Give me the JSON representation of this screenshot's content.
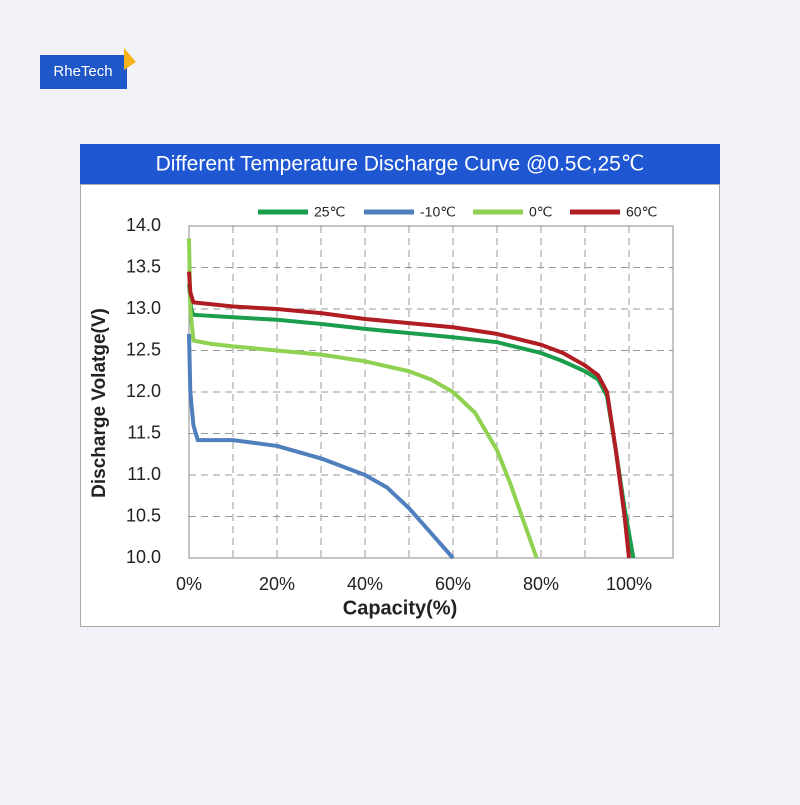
{
  "logo": "RheTech",
  "chart_data": {
    "type": "line",
    "title": "Different Temperature Discharge Curve @0.5C,25℃",
    "x_label": "Capacity(%)",
    "y_label": "Discharge Volatge(V)",
    "xlim": [
      0,
      110
    ],
    "ylim": [
      10,
      14
    ],
    "xticks": [
      {
        "value": 0,
        "label": "0%"
      },
      {
        "value": 20,
        "label": "20%"
      },
      {
        "value": 40,
        "label": "40%"
      },
      {
        "value": 60,
        "label": "60%"
      },
      {
        "value": 80,
        "label": "80%"
      },
      {
        "value": 100,
        "label": "100%"
      }
    ],
    "minor_xticks": [
      10,
      30,
      50,
      70,
      90,
      110
    ],
    "yticks": [
      {
        "value": 10,
        "label": "10.0"
      },
      10.5,
      {
        "value": 11,
        "label": "11.0"
      },
      11.5,
      {
        "value": 12,
        "label": "12.0"
      },
      12.5,
      {
        "value": 13,
        "label": "13.0"
      },
      13.5,
      {
        "value": 14,
        "label": "14.0"
      }
    ],
    "grid": true,
    "legend": "top",
    "series": [
      {
        "name": "25℃",
        "color": "#1a9e4c",
        "x": [
          0,
          0.5,
          1,
          10,
          20,
          30,
          40,
          50,
          60,
          70,
          80,
          85,
          90,
          93,
          95,
          97,
          99,
          101
        ],
        "values": [
          13.3,
          13.0,
          12.93,
          12.9,
          12.87,
          12.82,
          12.76,
          12.71,
          12.66,
          12.6,
          12.47,
          12.37,
          12.25,
          12.15,
          11.95,
          11.3,
          10.6,
          10.0
        ]
      },
      {
        "name": "-10℃",
        "color": "#4f7fbd",
        "x": [
          0,
          0.3,
          1,
          2,
          5,
          10,
          20,
          30,
          40,
          45,
          50,
          55,
          60
        ],
        "values": [
          12.7,
          12.0,
          11.6,
          11.42,
          11.42,
          11.42,
          11.35,
          11.2,
          11.0,
          10.85,
          10.6,
          10.3,
          10.0
        ]
      },
      {
        "name": "0℃",
        "color": "#8fd150",
        "x": [
          0,
          0.3,
          1,
          5,
          10,
          20,
          30,
          40,
          50,
          55,
          60,
          65,
          70,
          73,
          76,
          79
        ],
        "values": [
          13.85,
          13.0,
          12.62,
          12.58,
          12.55,
          12.5,
          12.45,
          12.37,
          12.25,
          12.15,
          12.0,
          11.75,
          11.3,
          10.9,
          10.45,
          10.0
        ]
      },
      {
        "name": "60℃",
        "color": "#b01e24",
        "x": [
          0,
          0.3,
          1,
          10,
          20,
          30,
          40,
          50,
          60,
          70,
          80,
          85,
          90,
          93,
          95,
          97,
          99,
          100
        ],
        "values": [
          13.45,
          13.2,
          13.08,
          13.03,
          13.0,
          12.95,
          12.88,
          12.83,
          12.78,
          12.7,
          12.57,
          12.47,
          12.32,
          12.2,
          12.0,
          11.3,
          10.5,
          10.0
        ]
      }
    ]
  }
}
